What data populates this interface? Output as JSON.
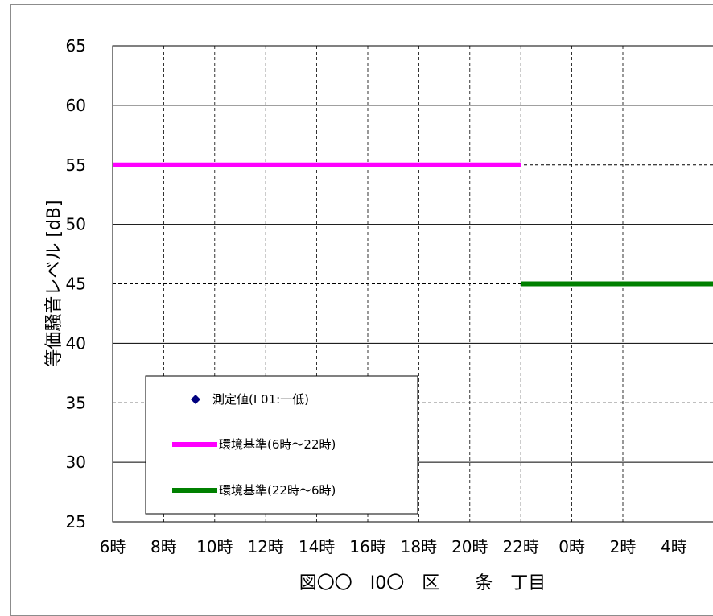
{
  "chart_data": {
    "type": "line",
    "xlabel": "図〇〇　I0〇　区　　条　丁目",
    "ylabel": "等価騒音レベル [dB]",
    "x_tick_labels": [
      "6時",
      "8時",
      "10時",
      "12時",
      "14時",
      "16時",
      "18時",
      "20時",
      "22時",
      "0時",
      "2時",
      "4時"
    ],
    "y_tick_labels": [
      "25",
      "30",
      "35",
      "40",
      "45",
      "50",
      "55",
      "60",
      "65"
    ],
    "ylim": [
      25,
      65
    ],
    "xlim_hours_from_6": [
      0,
      24
    ],
    "grid": true,
    "legend_placement": "bottom-left",
    "series": [
      {
        "name": "測定値(I 01:一低)",
        "marker": "diamond",
        "color": "#00007f",
        "points": []
      },
      {
        "name": "環境基準(6時～22時)",
        "color": "#ff00ff",
        "x": [
          "6時",
          "22時"
        ],
        "y": [
          55,
          55
        ]
      },
      {
        "name": "環境基準(22時～6時)",
        "color": "#008000",
        "x": [
          "22時",
          "6時"
        ],
        "y": [
          45,
          45
        ]
      }
    ]
  }
}
